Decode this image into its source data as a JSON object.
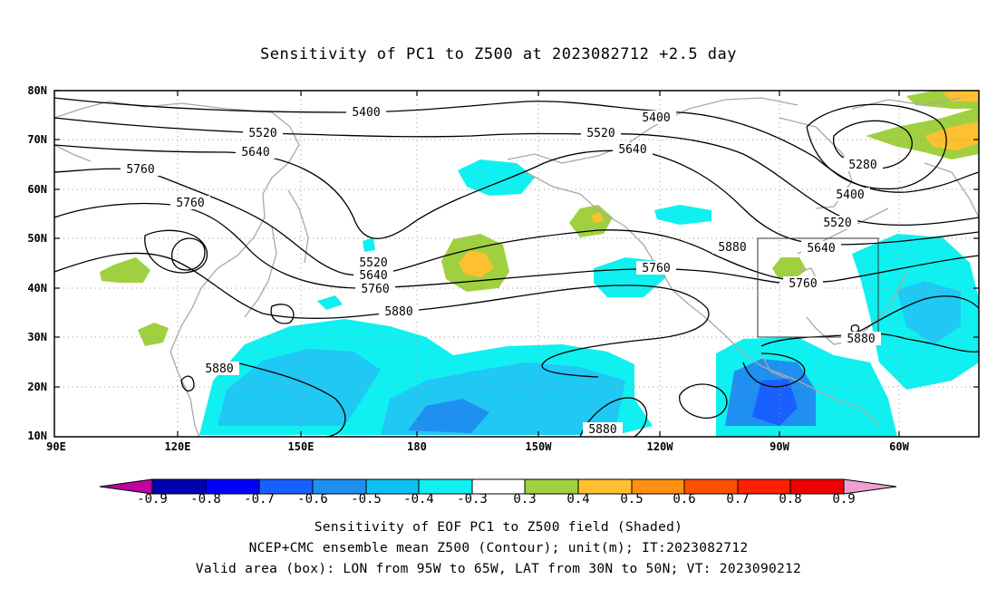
{
  "title": "Sensitivity of PC1 to Z500 at 2023082712 +2.5 day",
  "lat_labels": [
    "80N",
    "70N",
    "60N",
    "50N",
    "40N",
    "30N",
    "20N",
    "10N"
  ],
  "lon_labels": [
    "90E",
    "120E",
    "150E",
    "180",
    "150W",
    "120W",
    "90W",
    "60W"
  ],
  "contour_labels": {
    "c5400a": "5400",
    "c5400b": "5400",
    "c5400c": "5400",
    "c5520a": "5520",
    "c5520b": "5520",
    "c5520c": "5520",
    "c5520d": "5520",
    "c5640a": "5640",
    "c5640b": "5640",
    "c5640c": "5640",
    "c5640d": "5640",
    "c5760a": "5760",
    "c5760b": "5760",
    "c5760c": "5760",
    "c5760d": "5760",
    "c5760e": "5760",
    "c5880a": "5880",
    "c5880b": "5880",
    "c5880c": "5880",
    "c5880d": "5880",
    "c5880e": "5880",
    "c5280": "5280"
  },
  "colorbar": {
    "labels": [
      "-0.9",
      "-0.8",
      "-0.7",
      "-0.6",
      "-0.5",
      "-0.4",
      "-0.3",
      "0.3",
      "0.4",
      "0.5",
      "0.6",
      "0.7",
      "0.8",
      "0.9"
    ],
    "colors": [
      "#c000a0",
      "#0000b0",
      "#0000ff",
      "#1860ff",
      "#2090f0",
      "#10c0f0",
      "#10f0f0",
      "#ffffff",
      "#a0d040",
      "#ffc030",
      "#ff9010",
      "#ff5000",
      "#ff2000",
      "#f00000",
      "#f0a0d0"
    ]
  },
  "captions": {
    "line1": "Sensitivity of EOF PC1 to Z500 field (Shaded)",
    "line2": "NCEP+CMC ensemble mean Z500 (Contour); unit(m); IT:2023082712",
    "line3": "Valid area (box): LON from 95W to 65W, LAT from 30N to 50N; VT: 2023090212"
  }
}
